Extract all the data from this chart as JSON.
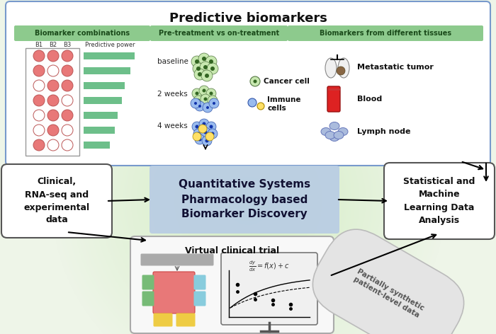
{
  "title": "Predictive biomarkers",
  "section_headers": [
    "Biomarker combinations",
    "Pre-treatment vs on-treatment",
    "Biomarkers from different tissues"
  ],
  "time_labels": [
    "baseline",
    "2 weeks",
    "4 weeks"
  ],
  "tissue_labels": [
    "Metastatic tumor",
    "Blood",
    "Lymph node"
  ],
  "center_box_text": "Quantitative Systems\nPharmacology based\nBiomarker Discovery",
  "left_box_text": "Clinical,\nRNA-seq and\nexperimental\ndata",
  "right_box_text": "Statistical and\nMachine\nLearning Data\nAnalysis",
  "bottom_box_title": "Virtual clinical trial",
  "partial_synthetic_text": "Partially synthetic\npatient-level data",
  "bar_lengths": [
    0.85,
    0.78,
    0.68,
    0.63,
    0.57,
    0.52,
    0.43
  ],
  "biomarker_rows": [
    [
      1,
      1,
      1
    ],
    [
      1,
      0,
      1
    ],
    [
      0,
      1,
      1
    ],
    [
      1,
      1,
      0
    ],
    [
      0,
      1,
      1
    ],
    [
      0,
      1,
      0
    ],
    [
      1,
      0,
      0
    ]
  ],
  "pink_color": "#e87878",
  "white_circle": "#ffffff",
  "green_header": "#8dca8d",
  "green_bar": "#6dbf8a",
  "top_box_bg": "#ffffff",
  "top_box_border": "#7799cc",
  "center_box_bg": "#b8cce4",
  "left_right_box_bg": "#ffffff",
  "bottom_box_bg": "#f8f8f8",
  "global_bg": "#eef5e8"
}
